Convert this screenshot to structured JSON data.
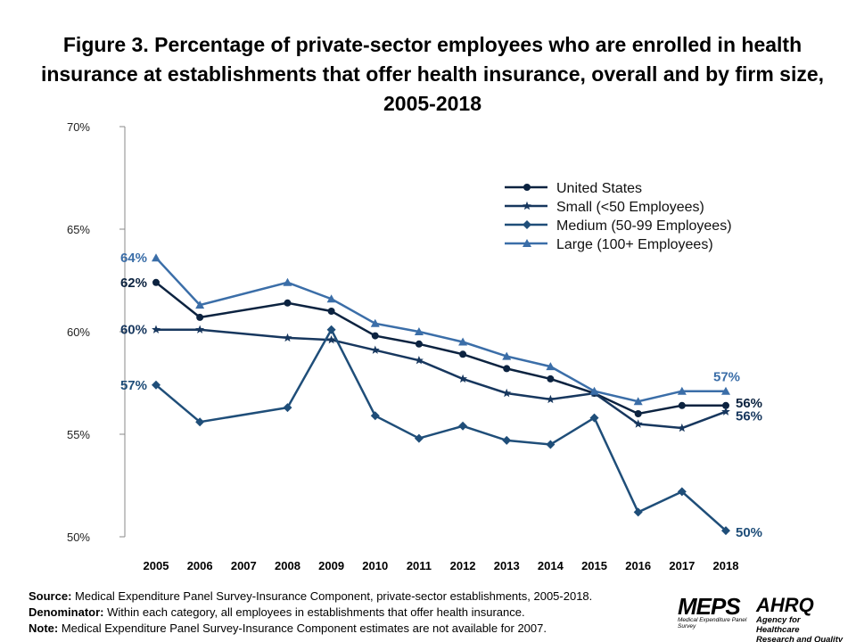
{
  "chart_data": {
    "type": "line",
    "title": "Figure 3. Percentage of private-sector employees who are enrolled in health insurance at establishments that offer health insurance, overall and by firm size, 2005-2018",
    "categories": [
      "2005",
      "2006",
      "2007",
      "2008",
      "2009",
      "2010",
      "2011",
      "2012",
      "2013",
      "2014",
      "2015",
      "2016",
      "2017",
      "2018"
    ],
    "y_ticks": [
      "50%",
      "55%",
      "60%",
      "65%",
      "70%"
    ],
    "ylim": [
      50,
      70
    ],
    "grid": false,
    "legend_position": "top-right",
    "series": [
      {
        "name": "United States",
        "marker": "circle",
        "color": "#0c2340",
        "values": [
          62.4,
          60.7,
          null,
          61.4,
          61.0,
          59.8,
          59.4,
          58.9,
          58.2,
          57.7,
          57.0,
          56.0,
          56.4,
          56.4
        ],
        "start_label": "62%",
        "end_label": "56%"
      },
      {
        "name": "Small (<50 Employees)",
        "marker": "star",
        "color": "#17375e",
        "values": [
          60.1,
          60.1,
          null,
          59.7,
          59.6,
          59.1,
          58.6,
          57.7,
          57.0,
          56.7,
          57.0,
          55.5,
          55.3,
          56.1
        ],
        "start_label": "60%",
        "end_label": "56%"
      },
      {
        "name": "Medium (50-99 Employees)",
        "marker": "diamond",
        "color": "#1f4e79",
        "values": [
          57.4,
          55.6,
          null,
          56.3,
          60.1,
          55.9,
          54.8,
          55.4,
          54.7,
          54.5,
          55.8,
          51.2,
          52.2,
          50.3
        ],
        "start_label": "57%",
        "end_label": "50%"
      },
      {
        "name": "Large (100+ Employees)",
        "marker": "triangle",
        "color": "#3b6ea8",
        "values": [
          63.6,
          61.3,
          null,
          62.4,
          61.6,
          60.4,
          60.0,
          59.5,
          58.8,
          58.3,
          57.1,
          56.6,
          57.1,
          57.1
        ],
        "start_label": "64%",
        "end_label": "57%"
      }
    ]
  },
  "notes": {
    "source_label": "Source:",
    "source": " Medical Expenditure Panel Survey-Insurance Component,  private-sector establishments, 2005-2018.",
    "denominator_label": "Denominator:",
    "denominator": " Within each category, all employees in establishments that offer health insurance.",
    "note_label": "Note:",
    "note": " Medical Expenditure Panel Survey-Insurance Component  estimates are not available for 2007."
  },
  "logos": {
    "meps": "MEPS",
    "meps_sub": "Medical Expenditure Panel Survey",
    "ahrq": "AHRQ",
    "ahrq_sub1": "Agency for Healthcare",
    "ahrq_sub2": "Research and Quality"
  }
}
